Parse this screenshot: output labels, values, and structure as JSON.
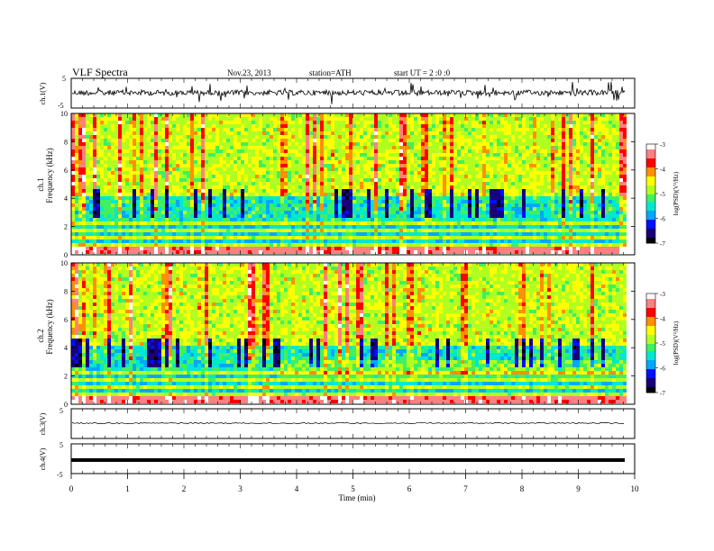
{
  "header": {
    "title": "VLF Spectra",
    "date": "Nov.23, 2013",
    "station": "station=ATH",
    "start_ut": "start UT = 2 :0 :0"
  },
  "colors": {
    "colormap": [
      "#000000",
      "#1a007a",
      "#0010ff",
      "#00a8ff",
      "#00e8d0",
      "#40f060",
      "#b0ff20",
      "#ffff00",
      "#ff9000",
      "#ff0000",
      "#ff8080",
      "#ffffff"
    ],
    "trace": "#000000",
    "frame": "#000000",
    "background": "#ffffff"
  },
  "chart_data": [
    {
      "type": "line",
      "id": "ch1-waveform",
      "ylabel": "ch.1(V)",
      "ylim": [
        -5,
        5
      ],
      "yticks": [
        "5",
        "-5"
      ],
      "xlim": [
        0,
        10
      ],
      "series": [
        {
          "description_level_V": 0.0,
          "peak_amplitude_V": 4.5
        }
      ]
    },
    {
      "type": "heatmap",
      "id": "ch1-spectrogram",
      "ylabel_channel": "ch.1",
      "ylabel": "Frequency (kHz)",
      "ylim": [
        0,
        10
      ],
      "yticks": [
        "0",
        "2",
        "4",
        "6",
        "8",
        "10"
      ],
      "xlim": [
        0,
        9.8
      ],
      "colorbar": {
        "label": "log(PSD)(V²/Hz)",
        "range": [
          -7,
          -3
        ],
        "ticks": [
          "-3",
          "-4",
          "-5",
          "-6",
          "-7"
        ]
      },
      "step_change_minute": null
    },
    {
      "type": "heatmap",
      "id": "ch2-spectrogram",
      "ylabel_channel": "ch.2",
      "ylabel": "Frequency (kHz)",
      "ylim": [
        0,
        10
      ],
      "yticks": [
        "0",
        "2",
        "4",
        "6",
        "8",
        "10"
      ],
      "xlim": [
        0,
        9.8
      ],
      "colorbar": {
        "label": "log(PSD)(V²/Hz)",
        "range": [
          -7,
          -3
        ],
        "ticks": [
          "-3",
          "-4",
          "-5",
          "-6",
          "-7"
        ]
      },
      "step_change_minute": 3.65
    },
    {
      "type": "line",
      "id": "ch3-waveform",
      "ylabel": "ch.3(V)",
      "ylim": [
        -5,
        5
      ],
      "yticks": [
        "5"
      ],
      "xlim": [
        0,
        10
      ],
      "series": [
        {
          "level_V": 0.0
        }
      ]
    },
    {
      "type": "line",
      "id": "ch4-waveform",
      "ylabel": "ch.4(V)",
      "ylim": [
        -5,
        5
      ],
      "yticks": [
        "5",
        "-5"
      ],
      "xlim": [
        0,
        10
      ],
      "series": [
        {
          "level_V": 0.0
        }
      ]
    }
  ],
  "xaxis": {
    "label": "Time (min)",
    "range": [
      0,
      10
    ],
    "ticks": [
      "0",
      "1",
      "2",
      "3",
      "4",
      "5",
      "6",
      "7",
      "8",
      "9",
      "10"
    ]
  }
}
